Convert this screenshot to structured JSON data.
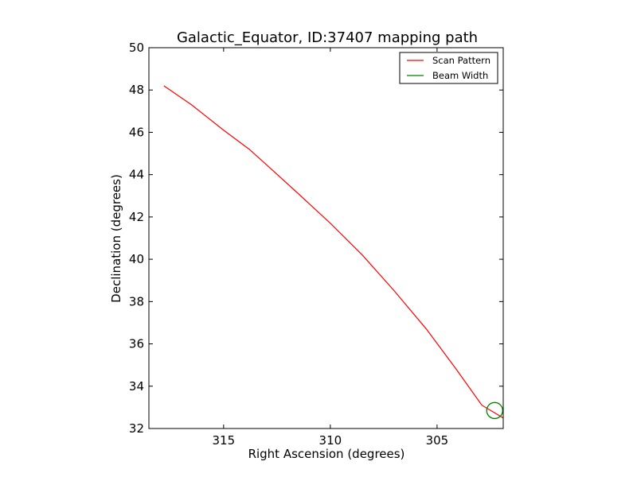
{
  "chart_data": {
    "type": "line",
    "title": "Galactic_Equator, ID:37407 mapping path",
    "xlabel": "Right Ascension (degrees)",
    "ylabel": "Declination (degrees)",
    "xlim": [
      318.5,
      301.9
    ],
    "ylim": [
      32,
      50
    ],
    "xticks": [
      315,
      310,
      305
    ],
    "xtick_labels": [
      "315",
      "310",
      "305"
    ],
    "yticks": [
      32,
      34,
      36,
      38,
      40,
      42,
      44,
      46,
      48,
      50
    ],
    "ytick_labels": [
      "32",
      "34",
      "36",
      "38",
      "40",
      "42",
      "44",
      "46",
      "48",
      "50"
    ],
    "grid": false,
    "legend": {
      "placement": "top-right",
      "entries": [
        {
          "label": "Scan Pattern",
          "color": "#ff0000"
        },
        {
          "label": "Beam Width",
          "color": "#008000"
        }
      ]
    },
    "series": [
      {
        "name": "Scan Pattern",
        "color": "#ff0000",
        "x": [
          317.8,
          316.5,
          315.0,
          313.8,
          312.7,
          311.5,
          310.0,
          308.5,
          307.0,
          305.5,
          304.1,
          302.9,
          301.9
        ],
        "y": [
          48.2,
          47.3,
          46.1,
          45.2,
          44.2,
          43.1,
          41.7,
          40.2,
          38.5,
          36.7,
          34.8,
          33.1,
          32.5
        ]
      }
    ],
    "beam_marker": {
      "name": "Beam Width",
      "color": "#008000",
      "x": 302.3,
      "y": 32.85,
      "diameter_deg": 0.75
    }
  }
}
